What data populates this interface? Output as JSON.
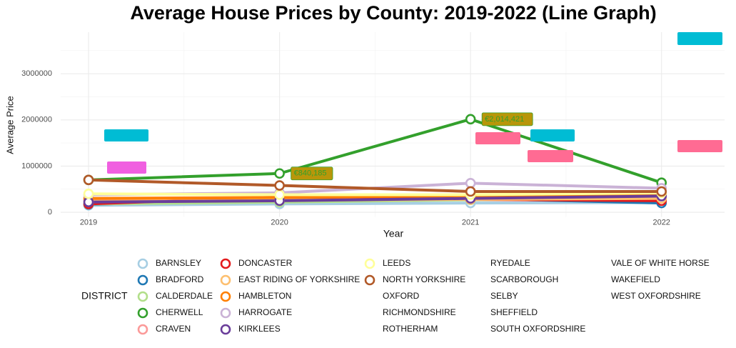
{
  "chart_data": {
    "type": "line",
    "title": "Average House Prices by County: 2019-2022 (Line Graph)",
    "x_label": "Year",
    "y_label": "Average Price",
    "legend_title": "DISTRICT",
    "x": [
      2019,
      2020,
      2021,
      2022
    ],
    "xlim": [
      2018.854,
      2022.33
    ],
    "xticks": [
      2019,
      2020,
      2021,
      2022
    ],
    "ylim": [
      -100000,
      3900000
    ],
    "yticks": [
      0,
      1000000,
      2000000,
      3000000
    ],
    "grid": true,
    "series": [
      {
        "name": "BARNSLEY",
        "color": "#a6cee3",
        "values": [
          150000,
          180000,
          200000,
          210000
        ]
      },
      {
        "name": "BRADFORD",
        "color": "#1f78b4",
        "values": [
          170000,
          300000,
          300000,
          200000
        ]
      },
      {
        "name": "CALDERDALE",
        "color": "#b2df8a",
        "values": [
          180000,
          220000,
          270000,
          300000
        ]
      },
      {
        "name": "CHERWELL",
        "color": "#33a02c",
        "values": [
          700000,
          840185,
          2014421,
          640000
        ]
      },
      {
        "name": "CRAVEN",
        "color": "#fb9a99",
        "values": [
          270000,
          300000,
          330000,
          350000
        ]
      },
      {
        "name": "DONCASTER",
        "color": "#e31a1c",
        "values": [
          180000,
          330000,
          280000,
          250000
        ]
      },
      {
        "name": "EAST RIDING OF YORKSHIRE",
        "color": "#fdbf6f",
        "values": [
          230000,
          260000,
          280000,
          300000
        ]
      },
      {
        "name": "HAMBLETON",
        "color": "#ff7f00",
        "values": [
          300000,
          320000,
          360000,
          400000
        ]
      },
      {
        "name": "HARROGATE",
        "color": "#cab2d6",
        "values": [
          380000,
          420000,
          630000,
          520000
        ]
      },
      {
        "name": "KIRKLEES",
        "color": "#6a3d9a",
        "values": [
          220000,
          250000,
          300000,
          350000
        ]
      },
      {
        "name": "LEEDS",
        "color": "#ffff99",
        "values": [
          400000,
          380000,
          380000,
          420000
        ]
      },
      {
        "name": "NORTH YORKSHIRE",
        "color": "#b15928",
        "values": [
          700000,
          580000,
          450000,
          450000
        ]
      },
      {
        "name": "OXFORD",
        "color": null,
        "values": [
          null,
          null,
          null,
          null
        ]
      },
      {
        "name": "RICHMONDSHIRE",
        "color": null,
        "values": [
          null,
          null,
          null,
          null
        ]
      },
      {
        "name": "ROTHERHAM",
        "color": null,
        "values": [
          null,
          null,
          null,
          null
        ]
      },
      {
        "name": "RYEDALE",
        "color": null,
        "values": [
          null,
          null,
          null,
          null
        ]
      },
      {
        "name": "SCARBOROUGH",
        "color": null,
        "values": [
          null,
          null,
          null,
          null
        ]
      },
      {
        "name": "SELBY",
        "color": null,
        "values": [
          null,
          null,
          null,
          null
        ]
      },
      {
        "name": "SHEFFIELD",
        "color": null,
        "values": [
          null,
          null,
          null,
          null
        ]
      },
      {
        "name": "SOUTH OXFORDSHIRE",
        "color": null,
        "values": [
          null,
          null,
          null,
          null
        ]
      },
      {
        "name": "VALE OF WHITE HORSE",
        "color": null,
        "values": [
          null,
          null,
          null,
          null
        ]
      },
      {
        "name": "WAKEFIELD",
        "color": null,
        "values": [
          null,
          null,
          null,
          null
        ]
      },
      {
        "name": "WEST OXFORDSHIRE",
        "color": null,
        "values": [
          null,
          null,
          null,
          null
        ]
      }
    ],
    "annotations": [
      {
        "text": "€840,185",
        "series": 3,
        "point": 1
      },
      {
        "text": "€2,014,421",
        "series": 3,
        "point": 2
      }
    ]
  }
}
